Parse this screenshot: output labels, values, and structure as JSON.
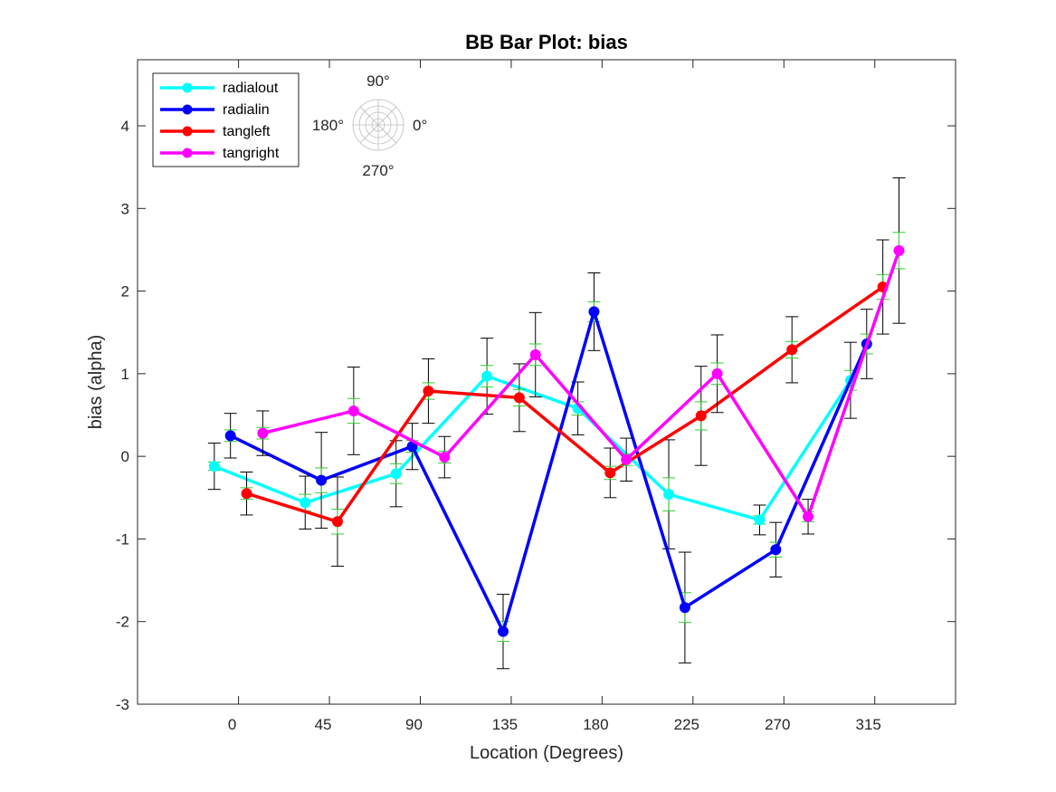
{
  "chart_data": {
    "type": "line",
    "title": "BB Bar Plot: bias",
    "xlabel": "Location (Degrees)",
    "ylabel": "bias (alpha)",
    "xlim": [
      -50,
      355
    ],
    "ylim": [
      -3,
      4.8
    ],
    "xticks": [
      0,
      45,
      90,
      135,
      180,
      225,
      270,
      315
    ],
    "xtick_labels": [
      "0",
      "45",
      "90",
      "135",
      "180",
      "225",
      "270",
      "315"
    ],
    "yticks": [
      -3,
      -2,
      -1,
      0,
      1,
      2,
      3,
      4
    ],
    "ytick_labels": [
      "-3",
      "-2",
      "-1",
      "0",
      "1",
      "2",
      "3",
      "4"
    ],
    "grid": false,
    "legend_position": "top-left",
    "inner_errorbar_color": "#33cc33",
    "outer_errorbar_color": "#000000",
    "series": [
      {
        "name": "radialout",
        "color": "#00ffff",
        "x": [
          -12,
          33,
          78,
          123,
          168,
          213,
          258,
          303
        ],
        "y": [
          -0.12,
          -0.56,
          -0.21,
          0.97,
          0.58,
          -0.46,
          -0.77,
          0.92
        ],
        "err": [
          0.28,
          0.32,
          0.4,
          0.46,
          0.32,
          0.66,
          0.18,
          0.46
        ],
        "inner_err": [
          0.05,
          0.1,
          0.12,
          0.13,
          0.08,
          0.2,
          0.05,
          0.12
        ]
      },
      {
        "name": "radialin",
        "color": "#0000ff",
        "x": [
          -4,
          41,
          86,
          131,
          176,
          221,
          266,
          311
        ],
        "y": [
          0.25,
          -0.29,
          0.12,
          -2.12,
          1.75,
          -1.83,
          -1.13,
          1.36
        ],
        "err": [
          0.27,
          0.58,
          0.28,
          0.45,
          0.47,
          0.67,
          0.33,
          0.42
        ],
        "inner_err": [
          0.07,
          0.15,
          0.07,
          0.12,
          0.12,
          0.18,
          0.09,
          0.12
        ]
      },
      {
        "name": "tangleft",
        "color": "#ff0000",
        "x": [
          4,
          49,
          94,
          139,
          184,
          229,
          274,
          319
        ],
        "y": [
          -0.45,
          -0.79,
          0.79,
          0.71,
          -0.2,
          0.49,
          1.29,
          2.05
        ],
        "err": [
          0.26,
          0.54,
          0.39,
          0.41,
          0.3,
          0.6,
          0.4,
          0.57
        ],
        "inner_err": [
          0.07,
          0.15,
          0.1,
          0.1,
          0.08,
          0.17,
          0.1,
          0.15
        ]
      },
      {
        "name": "tangright",
        "color": "#ff00ff",
        "x": [
          12,
          57,
          102,
          147,
          192,
          237,
          282,
          327
        ],
        "y": [
          0.28,
          0.55,
          -0.01,
          1.23,
          -0.04,
          1.0,
          -0.73,
          2.49
        ],
        "err": [
          0.27,
          0.53,
          0.25,
          0.51,
          0.26,
          0.47,
          0.21,
          0.88
        ],
        "inner_err": [
          0.07,
          0.15,
          0.07,
          0.13,
          0.07,
          0.13,
          0.06,
          0.22
        ]
      }
    ],
    "compass": {
      "top": "90°",
      "left": "180°",
      "right": "0°",
      "bottom": "270°"
    }
  }
}
